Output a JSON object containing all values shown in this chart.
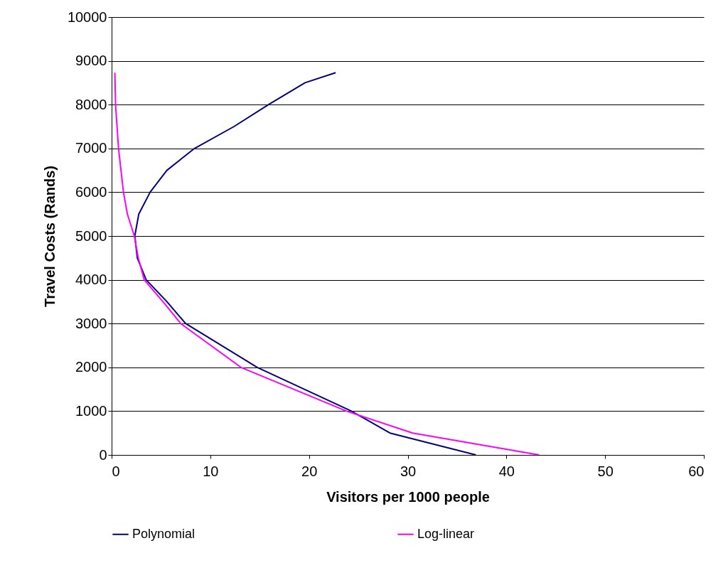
{
  "chart_data": {
    "type": "line",
    "xlabel": "Visitors per 1000 people",
    "ylabel": "Travel Costs (Rands)",
    "xlim": [
      0,
      60
    ],
    "xticks": [
      0,
      10,
      20,
      30,
      40,
      50,
      60
    ],
    "ylim": [
      0,
      10000
    ],
    "yticks": [
      0,
      1000,
      2000,
      3000,
      4000,
      5000,
      6000,
      7000,
      8000,
      9000,
      10000
    ],
    "grid": "y",
    "legend": "bottom",
    "marker": "none",
    "line_style": "solid",
    "series": [
      {
        "name": "Polynomial",
        "color": "#000080",
        "x": [
          22.7,
          19.6,
          15.9,
          12.4,
          8.4,
          5.6,
          3.9,
          2.75,
          2.35,
          2.6,
          3.5,
          5.6,
          7.5,
          14.75,
          24.3,
          28.2,
          36.9
        ],
        "values": [
          8730,
          8500,
          8000,
          7500,
          7000,
          6500,
          6000,
          5500,
          5000,
          4500,
          4000,
          3500,
          3000,
          2000,
          1000,
          500,
          0
        ]
      },
      {
        "name": "Log-linear",
        "color": "#ff00ff",
        "x": [
          0.33,
          0.4,
          0.7,
          1.2,
          1.6,
          2.3,
          2.7,
          3.3,
          5.2,
          7.0,
          13.1,
          23.8,
          30.5,
          43.3
        ],
        "values": [
          8730,
          8000,
          7000,
          6000,
          5500,
          5000,
          4500,
          4000,
          3500,
          3000,
          2000,
          1000,
          500,
          0
        ]
      }
    ]
  }
}
